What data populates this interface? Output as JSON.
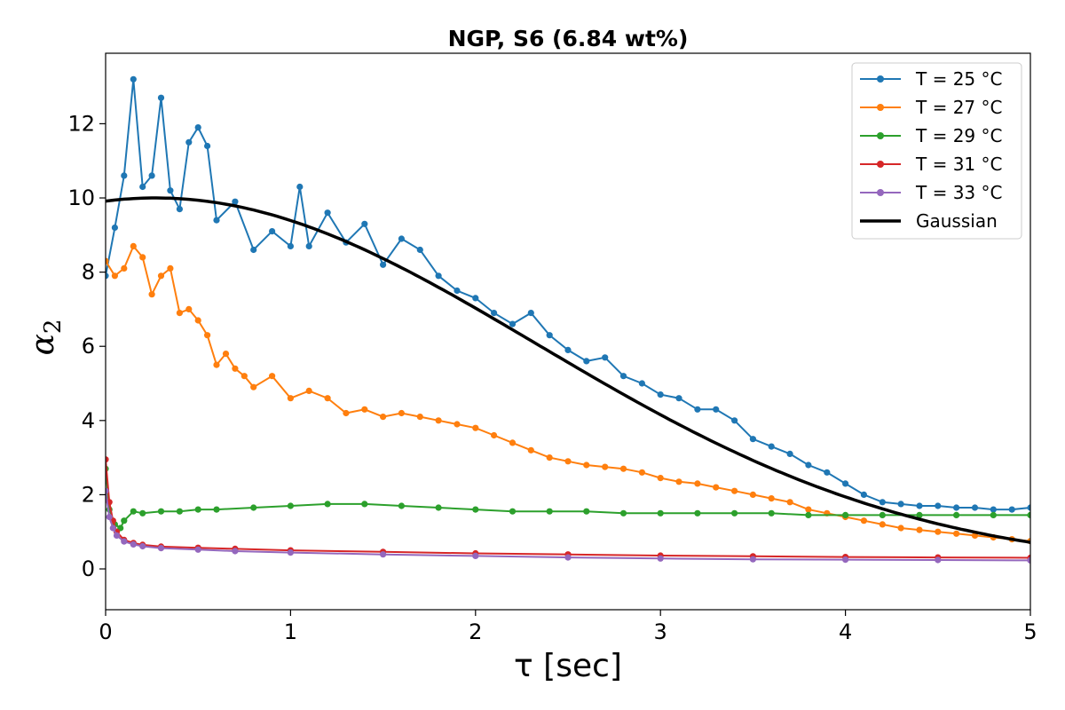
{
  "chart_data": {
    "type": "line",
    "title": "NGP, S6 (6.84 wt%)",
    "xlabel": "τ [sec]",
    "ylabel_main": "α",
    "ylabel_sub": "2",
    "xlim": [
      0,
      5
    ],
    "ylim": [
      -1.1,
      13.9
    ],
    "xticks": [
      0,
      1,
      2,
      3,
      4,
      5
    ],
    "yticks": [
      0,
      2,
      4,
      6,
      8,
      10,
      12
    ],
    "grid": false,
    "legend_position": "top-right",
    "series": [
      {
        "name": "T = 25 °C",
        "color": "#1f77b4",
        "marker": "circle",
        "x": [
          0.0,
          0.05,
          0.1,
          0.15,
          0.2,
          0.25,
          0.3,
          0.35,
          0.4,
          0.45,
          0.5,
          0.55,
          0.6,
          0.7,
          0.8,
          0.9,
          1.0,
          1.05,
          1.1,
          1.2,
          1.3,
          1.4,
          1.5,
          1.6,
          1.7,
          1.8,
          1.9,
          2.0,
          2.1,
          2.2,
          2.3,
          2.4,
          2.5,
          2.6,
          2.7,
          2.8,
          2.9,
          3.0,
          3.1,
          3.2,
          3.3,
          3.4,
          3.5,
          3.6,
          3.7,
          3.8,
          3.9,
          4.0,
          4.1,
          4.2,
          4.3,
          4.4,
          4.5,
          4.6,
          4.7,
          4.8,
          4.9,
          5.0
        ],
        "y": [
          7.9,
          9.2,
          10.6,
          13.2,
          10.3,
          10.6,
          12.7,
          10.2,
          9.7,
          11.5,
          11.9,
          11.4,
          9.4,
          9.9,
          8.6,
          9.1,
          8.7,
          10.3,
          8.7,
          9.6,
          8.8,
          9.3,
          8.2,
          8.9,
          8.6,
          7.9,
          7.5,
          7.3,
          6.9,
          6.6,
          6.9,
          6.3,
          5.9,
          5.6,
          5.7,
          5.2,
          5.0,
          4.7,
          4.6,
          4.3,
          4.3,
          4.0,
          3.5,
          3.3,
          3.1,
          2.8,
          2.6,
          2.3,
          2.0,
          1.8,
          1.75,
          1.7,
          1.7,
          1.65,
          1.65,
          1.6,
          1.6,
          1.65
        ]
      },
      {
        "name": "T = 27 °C",
        "color": "#ff7f0e",
        "marker": "circle",
        "x": [
          0.0,
          0.05,
          0.1,
          0.15,
          0.2,
          0.25,
          0.3,
          0.35,
          0.4,
          0.45,
          0.5,
          0.55,
          0.6,
          0.65,
          0.7,
          0.75,
          0.8,
          0.9,
          1.0,
          1.1,
          1.2,
          1.3,
          1.4,
          1.5,
          1.6,
          1.7,
          1.8,
          1.9,
          2.0,
          2.1,
          2.2,
          2.3,
          2.4,
          2.5,
          2.6,
          2.7,
          2.8,
          2.9,
          3.0,
          3.1,
          3.2,
          3.3,
          3.4,
          3.5,
          3.6,
          3.7,
          3.8,
          3.9,
          4.0,
          4.1,
          4.2,
          4.3,
          4.4,
          4.5,
          4.6,
          4.7,
          4.8,
          4.9,
          5.0
        ],
        "y": [
          8.3,
          7.9,
          8.1,
          8.7,
          8.4,
          7.4,
          7.9,
          8.1,
          6.9,
          7.0,
          6.7,
          6.3,
          5.5,
          5.8,
          5.4,
          5.2,
          4.9,
          5.2,
          4.6,
          4.8,
          4.6,
          4.2,
          4.3,
          4.1,
          4.2,
          4.1,
          4.0,
          3.9,
          3.8,
          3.6,
          3.4,
          3.2,
          3.0,
          2.9,
          2.8,
          2.75,
          2.7,
          2.6,
          2.45,
          2.35,
          2.3,
          2.2,
          2.1,
          2.0,
          1.9,
          1.8,
          1.6,
          1.5,
          1.4,
          1.3,
          1.2,
          1.1,
          1.05,
          1.0,
          0.95,
          0.9,
          0.85,
          0.8,
          0.75
        ]
      },
      {
        "name": "T = 29 °C",
        "color": "#2ca02c",
        "marker": "circle",
        "x": [
          0.0,
          0.02,
          0.05,
          0.08,
          0.1,
          0.15,
          0.2,
          0.3,
          0.4,
          0.5,
          0.6,
          0.8,
          1.0,
          1.2,
          1.4,
          1.6,
          1.8,
          2.0,
          2.2,
          2.4,
          2.6,
          2.8,
          3.0,
          3.2,
          3.4,
          3.6,
          3.8,
          4.0,
          4.2,
          4.4,
          4.6,
          4.8,
          5.0
        ],
        "y": [
          2.7,
          1.6,
          1.2,
          1.1,
          1.3,
          1.55,
          1.5,
          1.55,
          1.55,
          1.6,
          1.6,
          1.65,
          1.7,
          1.75,
          1.75,
          1.7,
          1.65,
          1.6,
          1.55,
          1.55,
          1.55,
          1.5,
          1.5,
          1.5,
          1.5,
          1.5,
          1.45,
          1.45,
          1.45,
          1.45,
          1.45,
          1.45,
          1.45
        ]
      },
      {
        "name": "T = 31 °C",
        "color": "#d62728",
        "marker": "circle",
        "x": [
          0.0,
          0.02,
          0.04,
          0.06,
          0.1,
          0.15,
          0.2,
          0.3,
          0.5,
          0.7,
          1.0,
          1.5,
          2.0,
          2.5,
          3.0,
          3.5,
          4.0,
          4.5,
          5.0
        ],
        "y": [
          2.95,
          1.8,
          1.3,
          1.0,
          0.78,
          0.7,
          0.65,
          0.6,
          0.57,
          0.54,
          0.5,
          0.46,
          0.42,
          0.39,
          0.36,
          0.34,
          0.32,
          0.31,
          0.3
        ]
      },
      {
        "name": "T = 33 °C",
        "color": "#9467bd",
        "marker": "circle",
        "x": [
          0.0,
          0.02,
          0.04,
          0.06,
          0.1,
          0.15,
          0.2,
          0.3,
          0.5,
          0.7,
          1.0,
          1.5,
          2.0,
          2.5,
          3.0,
          3.5,
          4.0,
          4.5,
          5.0
        ],
        "y": [
          2.1,
          1.4,
          1.1,
          0.9,
          0.74,
          0.66,
          0.61,
          0.56,
          0.52,
          0.48,
          0.44,
          0.39,
          0.35,
          0.31,
          0.28,
          0.26,
          0.25,
          0.24,
          0.23
        ]
      },
      {
        "name": "Gaussian",
        "color": "#000000",
        "marker": "none",
        "model": {
          "amplitude": 10.0,
          "center": 0.27,
          "sigma": 2.06
        }
      }
    ]
  }
}
